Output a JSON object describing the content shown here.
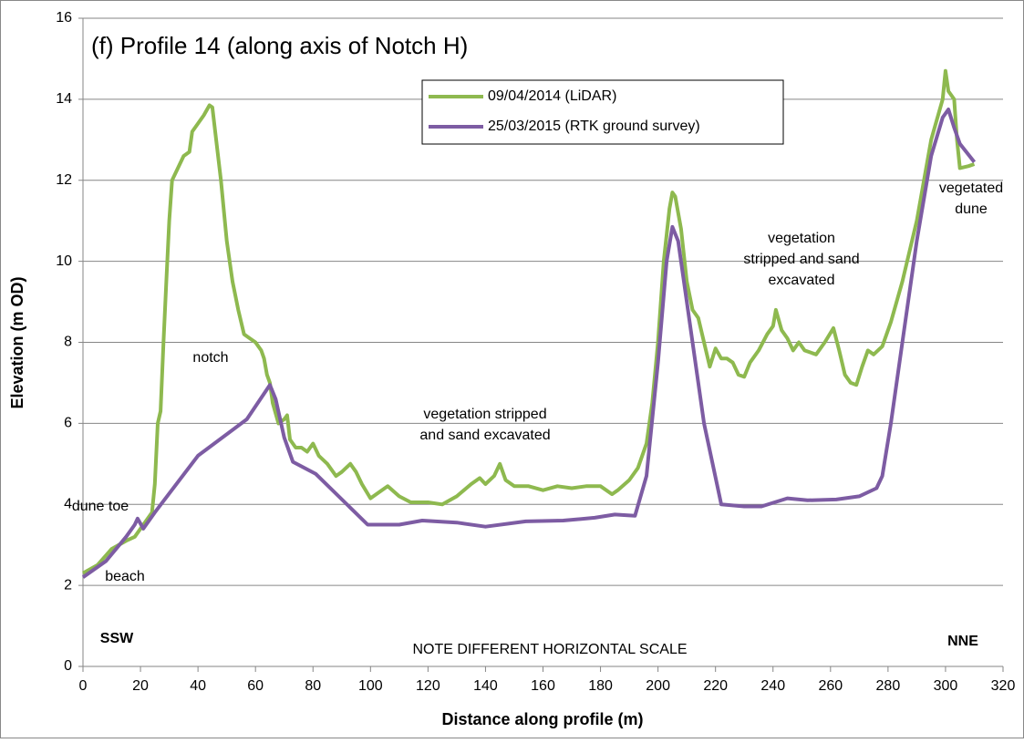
{
  "chart_data": {
    "type": "line",
    "title": "(f) Profile 14 (along axis of Notch H)",
    "xlabel": "Distance along profile (m)",
    "ylabel": "Elevation (m OD)",
    "xlim": [
      0,
      320
    ],
    "xticks": [
      0,
      20,
      40,
      60,
      80,
      100,
      120,
      140,
      160,
      180,
      200,
      220,
      240,
      260,
      280,
      300,
      320
    ],
    "ylim": [
      0,
      16
    ],
    "yticks": [
      0,
      2,
      4,
      6,
      8,
      10,
      12,
      14,
      16
    ],
    "grid": true,
    "legend": "top",
    "annotations": [
      [
        "notch"
      ],
      [
        "dune toe"
      ],
      [
        "beach"
      ],
      [
        "vegetation stripped",
        "and sand excavated"
      ],
      [
        "vegetation",
        "stripped and sand",
        "excavated"
      ],
      [
        "vegetated",
        "dune"
      ],
      [
        "SSW"
      ],
      [
        "NNE"
      ],
      [
        "NOTE DIFFERENT HORIZONTAL SCALE"
      ]
    ],
    "series": [
      {
        "name": "09/04/2014 (LiDAR)",
        "color": "#8eb94f",
        "x": [
          0,
          5,
          10,
          15,
          18,
          20,
          22,
          24,
          25,
          26,
          27,
          28,
          29,
          30,
          31,
          33,
          35,
          37,
          38,
          40,
          42,
          44,
          45,
          46,
          48,
          50,
          52,
          54,
          56,
          58,
          60,
          62,
          63,
          64,
          65,
          66,
          68,
          70,
          71,
          72,
          74,
          76,
          78,
          80,
          82,
          85,
          88,
          90,
          93,
          95,
          97,
          100,
          103,
          106,
          110,
          114,
          120,
          125,
          130,
          135,
          138,
          140,
          143,
          145,
          147,
          150,
          155,
          160,
          165,
          170,
          175,
          180,
          184,
          186,
          190,
          193,
          196,
          198,
          200,
          202,
          204,
          205,
          206,
          208,
          210,
          212,
          214,
          216,
          218,
          220,
          222,
          224,
          226,
          228,
          230,
          232,
          235,
          238,
          240,
          241,
          243,
          245,
          247,
          249,
          251,
          255,
          258,
          261,
          263,
          265,
          267,
          269,
          271,
          273,
          275,
          278,
          281,
          285,
          290,
          295,
          297,
          299,
          300,
          301,
          303,
          304,
          305,
          308,
          310
        ],
        "values": [
          2.3,
          2.5,
          2.9,
          3.1,
          3.2,
          3.4,
          3.6,
          3.8,
          4.5,
          6.0,
          6.3,
          8.0,
          9.5,
          11.0,
          12.0,
          12.3,
          12.6,
          12.7,
          13.2,
          13.4,
          13.6,
          13.85,
          13.8,
          13.2,
          12.0,
          10.5,
          9.5,
          8.8,
          8.2,
          8.1,
          8.0,
          7.8,
          7.6,
          7.2,
          7.0,
          6.5,
          6.0,
          6.1,
          6.2,
          5.6,
          5.4,
          5.4,
          5.3,
          5.5,
          5.2,
          5.0,
          4.7,
          4.8,
          5.0,
          4.8,
          4.5,
          4.15,
          4.3,
          4.45,
          4.2,
          4.05,
          4.05,
          4.0,
          4.2,
          4.5,
          4.65,
          4.5,
          4.7,
          5.0,
          4.6,
          4.45,
          4.45,
          4.35,
          4.45,
          4.4,
          4.45,
          4.45,
          4.25,
          4.35,
          4.6,
          4.9,
          5.5,
          6.5,
          8.0,
          10.0,
          11.3,
          11.7,
          11.6,
          10.8,
          9.5,
          8.8,
          8.6,
          8.0,
          7.4,
          7.85,
          7.6,
          7.6,
          7.5,
          7.2,
          7.15,
          7.5,
          7.8,
          8.2,
          8.4,
          8.8,
          8.3,
          8.1,
          7.8,
          8.0,
          7.8,
          7.7,
          8.0,
          8.35,
          7.8,
          7.2,
          7.0,
          6.95,
          7.4,
          7.8,
          7.7,
          7.9,
          8.5,
          9.5,
          11.0,
          13.0,
          13.5,
          14.0,
          14.7,
          14.2,
          14.0,
          13.0,
          12.3,
          12.35,
          12.4
        ]
      },
      {
        "name": "25/03/2015 (RTK ground survey)",
        "color": "#7d5ca3",
        "x": [
          0,
          8,
          15,
          18,
          19,
          21,
          25,
          40,
          57,
          65,
          67,
          70,
          73,
          81,
          99,
          110,
          118,
          130,
          140,
          154,
          167,
          178,
          185,
          192,
          196,
          200,
          203,
          205,
          207,
          210,
          216,
          222,
          230,
          236,
          245,
          252,
          262,
          270,
          276,
          278,
          281,
          285,
          290,
          295,
          299,
          301,
          303,
          305,
          310
        ],
        "values": [
          2.2,
          2.6,
          3.2,
          3.5,
          3.65,
          3.4,
          3.8,
          5.2,
          6.1,
          6.95,
          6.6,
          5.65,
          5.05,
          4.75,
          3.5,
          3.5,
          3.6,
          3.55,
          3.45,
          3.58,
          3.6,
          3.67,
          3.75,
          3.72,
          4.7,
          7.5,
          10.0,
          10.85,
          10.5,
          9.0,
          6.0,
          4.0,
          3.95,
          3.95,
          4.15,
          4.1,
          4.12,
          4.2,
          4.4,
          4.7,
          6.0,
          8.0,
          10.5,
          12.6,
          13.55,
          13.75,
          13.3,
          12.9,
          12.45
        ]
      }
    ]
  }
}
